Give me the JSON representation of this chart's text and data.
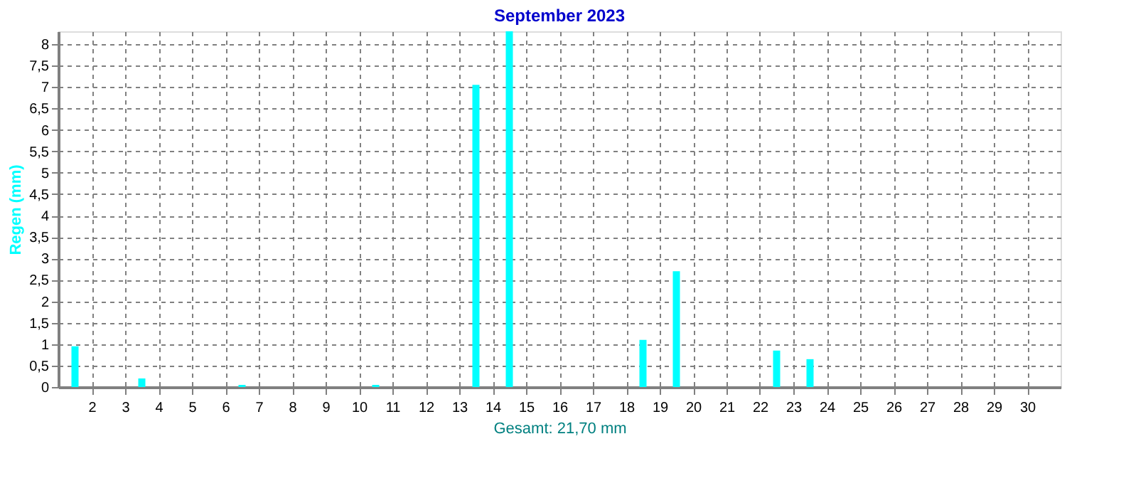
{
  "chart_data": {
    "type": "bar",
    "title": "September 2023",
    "xlabel": "Gesamt: 21,70 mm",
    "ylabel": "Regen  (mm)",
    "x": [
      1.5,
      2.5,
      3.5,
      4.5,
      5.5,
      6.5,
      7.5,
      8.5,
      9.5,
      10.5,
      11.5,
      12.5,
      13.5,
      14.5,
      15.5,
      16.5,
      17.5,
      18.5,
      19.5,
      20.5,
      21.5,
      22.5,
      23.5,
      24.5,
      25.5,
      26.5,
      27.5,
      28.5,
      29.5,
      30.5
    ],
    "values": [
      0.95,
      0,
      0.2,
      0,
      0,
      0.05,
      0,
      0,
      0,
      0.05,
      0,
      0,
      7.05,
      8.3,
      0,
      0,
      0,
      1.1,
      2.7,
      0,
      0,
      0.85,
      0.65,
      0,
      0,
      0,
      0,
      0,
      0,
      0
    ],
    "color": "#00ffff",
    "xlim": [
      1,
      31
    ],
    "xticks": [
      2,
      3,
      4,
      5,
      6,
      7,
      8,
      9,
      10,
      11,
      12,
      13,
      14,
      15,
      16,
      17,
      18,
      19,
      20,
      21,
      22,
      23,
      24,
      25,
      26,
      27,
      28,
      29,
      30
    ],
    "ylim": [
      0,
      8.3
    ],
    "yticks": [
      0,
      {
        "value": 0.5,
        "label": "0,5"
      },
      1,
      {
        "value": 1.5,
        "label": "1,5"
      },
      2,
      {
        "value": 2.5,
        "label": "2,5"
      },
      3,
      {
        "value": 3.5,
        "label": "3,5"
      },
      4,
      {
        "value": 4.5,
        "label": "4,5"
      },
      5,
      {
        "value": 5.5,
        "label": "5,5"
      },
      6,
      {
        "value": 6.5,
        "label": "6,5"
      },
      7,
      {
        "value": 7.5,
        "label": "7,5"
      },
      8
    ],
    "grid": true
  }
}
